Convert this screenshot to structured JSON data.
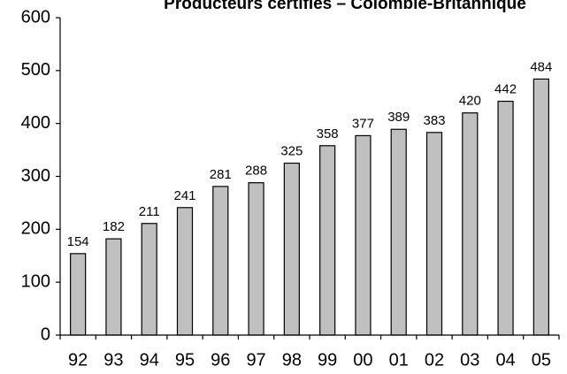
{
  "chart_data": {
    "type": "bar",
    "title": "Producteurs certifiés – Colombie-Britannique",
    "xlabel": "",
    "ylabel": "",
    "categories": [
      "92",
      "93",
      "94",
      "95",
      "96",
      "97",
      "98",
      "99",
      "00",
      "01",
      "02",
      "03",
      "04",
      "05"
    ],
    "values": [
      154,
      182,
      211,
      241,
      281,
      288,
      325,
      358,
      377,
      389,
      383,
      420,
      442,
      484
    ],
    "ylim": [
      0,
      600
    ],
    "yticks": [
      0,
      100,
      200,
      300,
      400,
      500,
      600
    ],
    "grid": false,
    "legend": "none",
    "data_labels": true,
    "bar_color": "#c0c0c0",
    "bar_edge_color": "#000000"
  }
}
